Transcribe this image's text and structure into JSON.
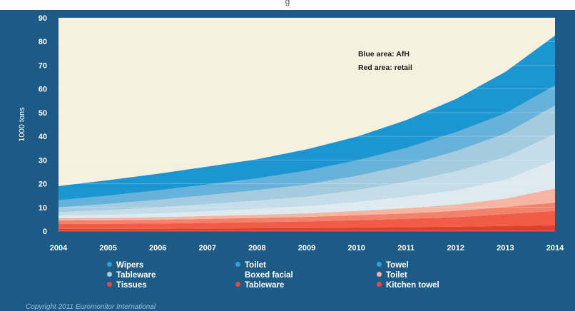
{
  "header": {
    "title_fragment": "g"
  },
  "annotation": {
    "line1": "Blue area: AfH",
    "line2": "Red area: retail"
  },
  "legend": [
    {
      "label": "Wipers",
      "color": "#2f9fd8"
    },
    {
      "label": "Toilet",
      "color": "#2f9fd8"
    },
    {
      "label": "Towel",
      "color": "#2f9fd8"
    },
    {
      "label": "Tableware",
      "color": "#a9cfe3"
    },
    {
      "label": "Boxed facial",
      "color": ""
    },
    {
      "label": "Toilet",
      "color": "#f4b3a6"
    },
    {
      "label": "Tissues",
      "color": "#e8493c"
    },
    {
      "label": "Tableware",
      "color": "#e8493c"
    },
    {
      "label": "Kitchen towel",
      "color": "#e8493c"
    }
  ],
  "copyright": "Copyright 2011 Euromonitor International",
  "chart_data": {
    "type": "area",
    "stacked": true,
    "ylabel": "1000 tons",
    "xlabel": "",
    "ylim": [
      0,
      90
    ],
    "y_ticks": [
      0,
      10,
      20,
      30,
      40,
      50,
      60,
      70,
      80,
      90
    ],
    "grid": true,
    "plot_background": "#f6f0df",
    "categories": [
      "2004",
      "2005",
      "2006",
      "2007",
      "2008",
      "2009",
      "2010",
      "2011",
      "2012",
      "2013",
      "2014"
    ],
    "series": [
      {
        "name": "Kitchen towel",
        "color": "#e2402f",
        "values": [
          1,
          1,
          1,
          1.1,
          1.2,
          1.3,
          1.5,
          1.7,
          1.9,
          2.2,
          2.5
        ]
      },
      {
        "name": "Tableware",
        "color": "#f05c48",
        "values": [
          2,
          2.1,
          2.2,
          2.4,
          2.6,
          2.8,
          3.1,
          3.5,
          4,
          5,
          6
        ]
      },
      {
        "name": "Tissues",
        "color": "#f3826d",
        "values": [
          1.5,
          1.5,
          1.6,
          1.7,
          1.8,
          1.9,
          2.1,
          2.3,
          2.6,
          3,
          3.5
        ]
      },
      {
        "name": "Toilet",
        "color": "#f6b4a3",
        "values": [
          1,
          1,
          1.1,
          1.2,
          1.3,
          1.5,
          1.8,
          2.2,
          2.7,
          3.5,
          6
        ]
      },
      {
        "name": "Boxed facial",
        "color": "#ddebf1",
        "values": [
          1,
          1.3,
          1.6,
          2,
          2.5,
          3,
          3.8,
          4.8,
          6,
          8,
          12
        ]
      },
      {
        "name": "Tableware",
        "color": "#c4dde9",
        "values": [
          1.5,
          2,
          2.5,
          3,
          3.5,
          4,
          5,
          6.3,
          8,
          9.5,
          11
        ]
      },
      {
        "name": "Towel",
        "color": "#a4cbe0",
        "values": [
          2,
          2.6,
          3.2,
          3.8,
          4.4,
          5.2,
          6,
          7,
          8.5,
          10,
          12
        ]
      },
      {
        "name": "Toilet",
        "color": "#67b2da",
        "values": [
          3,
          3.5,
          4,
          4.5,
          5,
          5.8,
          6.5,
          7.3,
          8,
          8.5,
          8.5
        ]
      },
      {
        "name": "Wipers",
        "color": "#1c96d2",
        "values": [
          6,
          6.5,
          7,
          7.5,
          8,
          9,
          10,
          11.7,
          14,
          17.5,
          21
        ]
      }
    ]
  }
}
